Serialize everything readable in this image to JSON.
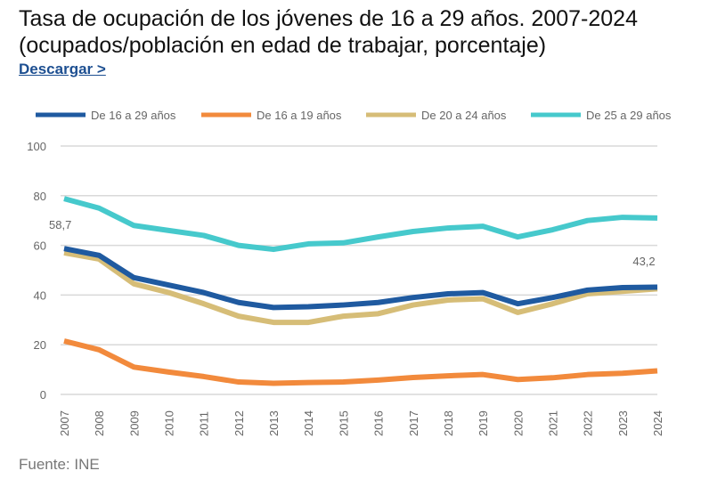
{
  "header": {
    "title": "Tasa de ocupación de los jóvenes de 16 a 29 años. 2007-2024 (ocupados/población en edad de trabajar, porcentaje)",
    "download_label": "Descargar >"
  },
  "footer": {
    "source": "Fuente: INE"
  },
  "chart_data": {
    "type": "line",
    "title": "Tasa de ocupación de los jóvenes de 16 a 29 años. 2007-2024 (ocupados/población en edad de trabajar, porcentaje)",
    "x": [
      "2007",
      "2008",
      "2009",
      "2010",
      "2011",
      "2012",
      "2013",
      "2014",
      "2015",
      "2016",
      "2017",
      "2018",
      "2019",
      "2020",
      "2021",
      "2022",
      "2023",
      "2024"
    ],
    "ylim": [
      0,
      100
    ],
    "yticks": [
      "0",
      "20",
      "40",
      "60",
      "80",
      "100"
    ],
    "grid": true,
    "legend": "top",
    "series": [
      {
        "name": "De 16 a 29 años",
        "color": "#1f5aa0",
        "values": [
          58.7,
          56,
          47,
          44,
          41,
          37,
          35,
          35.3,
          36,
          37,
          39,
          40.5,
          41,
          36.5,
          39,
          42,
          43,
          43.2
        ]
      },
      {
        "name": "De 16 a 19 años",
        "color": "#f28a3c",
        "values": [
          21.5,
          18,
          11,
          9,
          7.2,
          5,
          4.5,
          4.8,
          5,
          5.8,
          6.8,
          7.5,
          8,
          6,
          6.7,
          8,
          8.5,
          9.5
        ]
      },
      {
        "name": "De 20 a 24 años",
        "color": "#d6bd77",
        "values": [
          57,
          54.5,
          44.5,
          41,
          36.5,
          31.5,
          29,
          29,
          31.5,
          32.5,
          36,
          38,
          38.5,
          33,
          36.5,
          40.5,
          41.5,
          42.5
        ]
      },
      {
        "name": "De 25 a 29 años",
        "color": "#46c9cc",
        "values": [
          78.8,
          75,
          68,
          66,
          64,
          60,
          58.4,
          60.6,
          61,
          63.4,
          65.6,
          67,
          67.7,
          63.4,
          66.3,
          70,
          71.3,
          71
        ]
      }
    ],
    "annotations": [
      "58,7",
      "43,2"
    ]
  }
}
